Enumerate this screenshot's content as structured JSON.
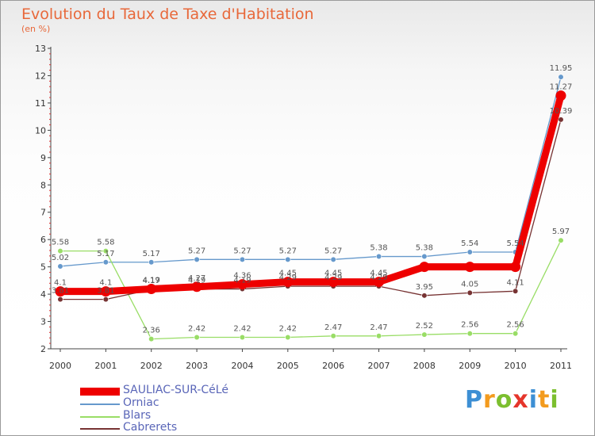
{
  "title": "Evolution du Taux de Taxe d'Habitation",
  "unit_label": "(en %)",
  "logo": {
    "text": "Proxiti",
    "letter_colors": [
      "#3d8fd4",
      "#f39b1e",
      "#7cbf2f",
      "#e5352b",
      "#3d8fd4",
      "#f39b1e",
      "#7cbf2f"
    ]
  },
  "chart_data": {
    "type": "line",
    "title": "Evolution du Taux de Taxe d'Habitation",
    "ylabel": "(en %)",
    "xlabel": "",
    "x": [
      "2000",
      "2001",
      "2002",
      "2003",
      "2004",
      "2005",
      "2006",
      "2007",
      "2008",
      "2009",
      "2010",
      "2011"
    ],
    "ylim": [
      2,
      13
    ],
    "yticks": [
      "2",
      "3",
      "4",
      "5",
      "6",
      "7",
      "8",
      "9",
      "10",
      "11",
      "12",
      "13"
    ],
    "grid": false,
    "legend_position": "bottom-left",
    "series": [
      {
        "name": "SAULIAC-SUR-CéLé",
        "color": "#ee0000",
        "emphasis": true,
        "values": [
          4.1,
          4.1,
          4.19,
          4.27,
          4.36,
          4.45,
          4.45,
          4.45,
          5.0,
          5.0,
          5.0,
          11.27
        ],
        "labels": [
          "4.1",
          "4.1",
          "4.19",
          "4.27",
          "4.36",
          "4.45",
          "4.45",
          "4.45",
          "",
          "",
          "",
          "11.27"
        ]
      },
      {
        "name": "Orniac",
        "color": "#6699cc",
        "emphasis": false,
        "values": [
          5.02,
          5.17,
          5.17,
          5.27,
          5.27,
          5.27,
          5.27,
          5.38,
          5.38,
          5.54,
          5.54,
          11.95
        ],
        "labels": [
          "5.02",
          "5.17",
          "5.17",
          "5.27",
          "5.27",
          "5.27",
          "5.27",
          "5.38",
          "5.38",
          "5.54",
          "5.54",
          "11.95"
        ]
      },
      {
        "name": "Blars",
        "color": "#99dd66",
        "emphasis": false,
        "values": [
          5.58,
          5.58,
          2.36,
          2.42,
          2.42,
          2.42,
          2.47,
          2.47,
          2.52,
          2.56,
          2.56,
          5.97
        ],
        "labels": [
          "5.58",
          "5.58",
          "2.36",
          "2.42",
          "2.42",
          "2.42",
          "2.47",
          "2.47",
          "2.52",
          "2.56",
          "2.56",
          "5.97"
        ]
      },
      {
        "name": "Cabrerets",
        "color": "#773333",
        "emphasis": false,
        "values": [
          3.81,
          3.81,
          4.17,
          4.19,
          4.19,
          4.29,
          4.29,
          4.29,
          3.95,
          4.05,
          4.11,
          10.39
        ],
        "labels": [
          "3.81",
          "3.81",
          "4.17",
          "4.19",
          "4.19",
          "4.29",
          "4.29",
          "4.29",
          "3.95",
          "4.05",
          "4.11",
          "10.39"
        ]
      }
    ]
  }
}
